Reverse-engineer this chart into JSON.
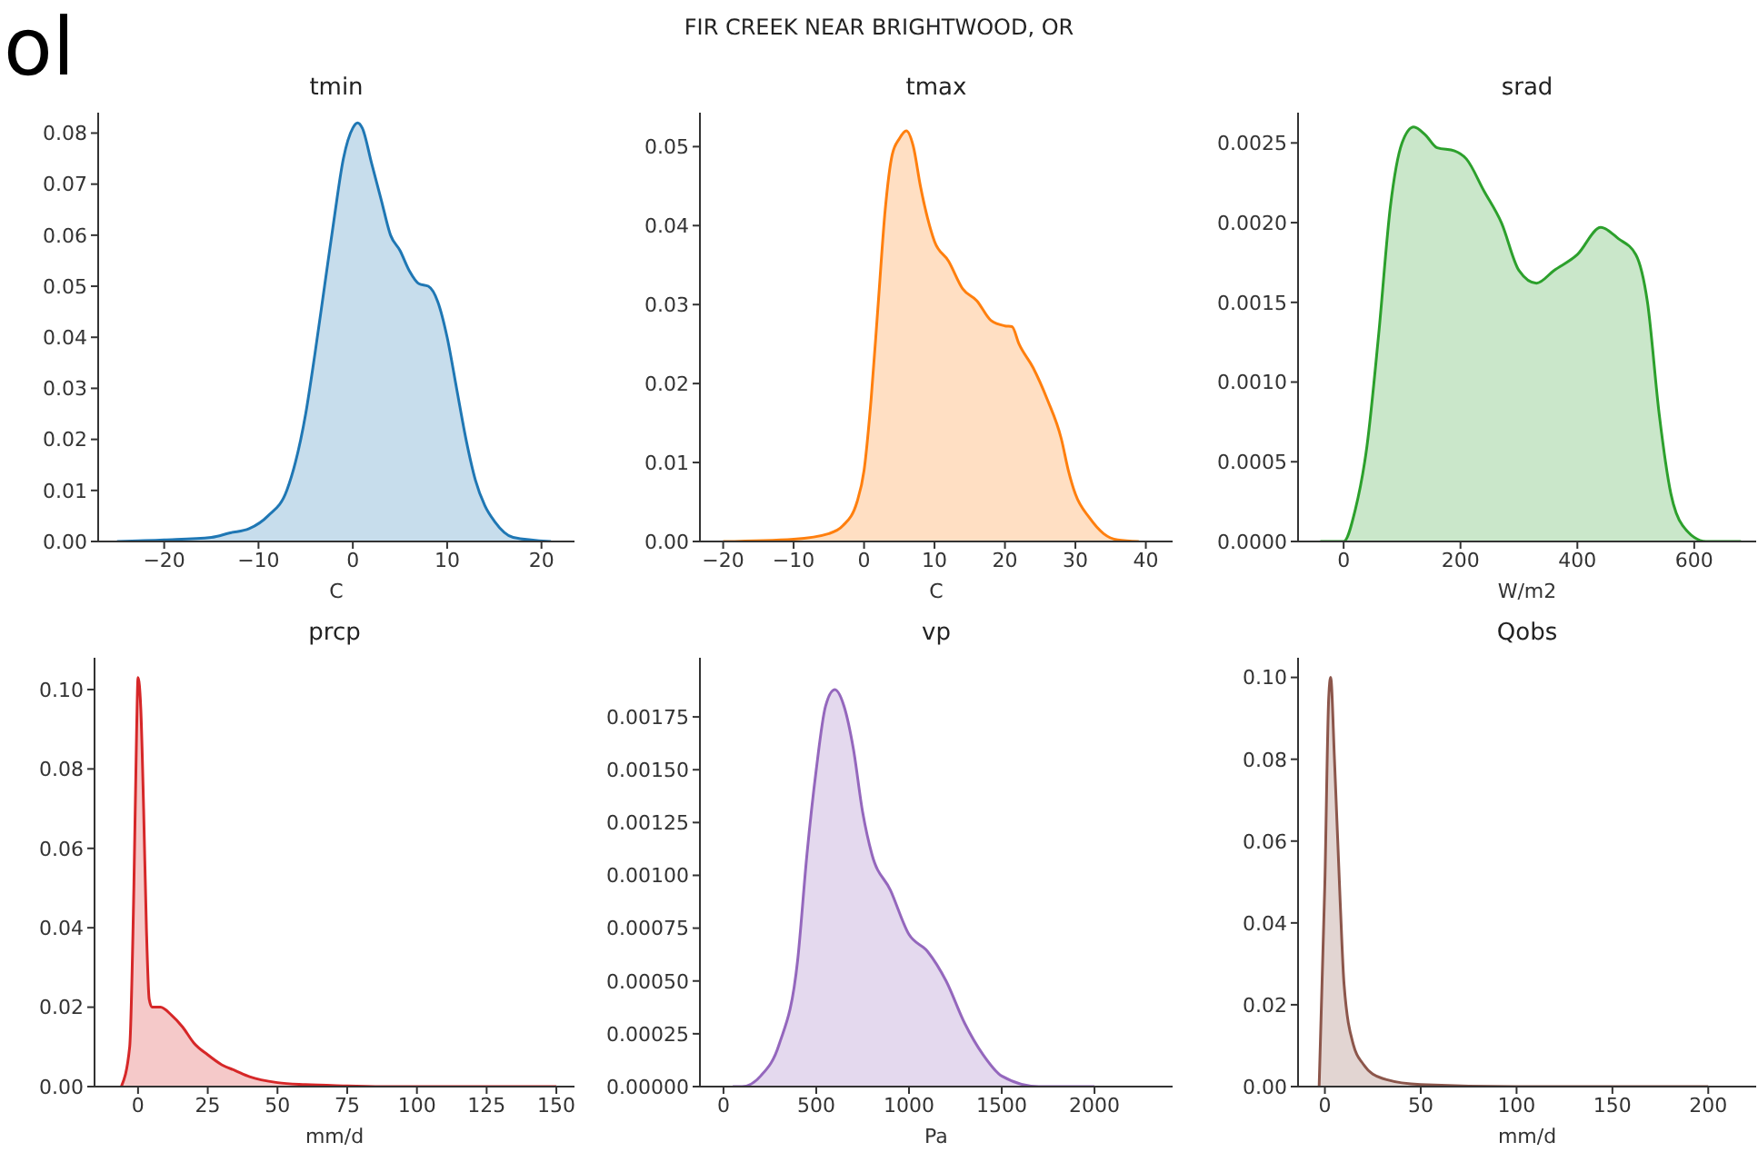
{
  "chart_data": [
    {
      "type": "area",
      "title": "tmin",
      "xlabel": "C",
      "color": "#1f77b4",
      "annotations": [
        "ol",
        "FIR CREEK NEAR BRIGHTWOOD, OR"
      ],
      "xlim": [
        -27,
        23.5
      ],
      "xticks": [
        -20,
        -10,
        0,
        10,
        20
      ],
      "ylim": [
        0,
        0.084
      ],
      "yticks": [
        {
          "value": 0,
          "label": "0.00"
        },
        0.01,
        0.02,
        0.03,
        0.04,
        0.05,
        0.06,
        0.07,
        0.08
      ],
      "grid": false,
      "legend": false,
      "x": [
        -25,
        -20,
        -15,
        -13,
        -11,
        -9,
        -7,
        -5,
        -4,
        -3,
        -2,
        -1,
        0,
        0.5,
        1,
        2,
        3,
        4,
        5,
        6,
        7,
        8,
        9,
        10,
        11,
        12,
        13,
        14,
        15,
        17,
        21
      ],
      "values": [
        0,
        0.0003,
        0.0008,
        0.0017,
        0.0025,
        0.005,
        0.01,
        0.025,
        0.037,
        0.05,
        0.063,
        0.075,
        0.081,
        0.082,
        0.081,
        0.074,
        0.067,
        0.06,
        0.057,
        0.053,
        0.0505,
        0.05,
        0.047,
        0.04,
        0.03,
        0.02,
        0.012,
        0.007,
        0.004,
        0.0008,
        0
      ]
    },
    {
      "type": "area",
      "title": "tmax",
      "xlabel": "C",
      "color": "#ff7f0e",
      "xlim": [
        -23.3,
        43.8
      ],
      "xticks": [
        -20,
        -10,
        0,
        10,
        20,
        30,
        40
      ],
      "ylim": [
        0,
        0.0543
      ],
      "yticks": [
        {
          "value": 0,
          "label": "0.00"
        },
        0.01,
        0.02,
        0.03,
        0.04,
        0.05
      ],
      "grid": false,
      "legend": false,
      "x": [
        -20,
        -10,
        -5,
        -3,
        -1,
        0,
        1,
        2,
        3,
        4,
        5,
        6,
        7,
        8,
        9,
        10,
        12,
        14,
        16,
        18,
        20,
        21,
        22,
        24,
        26,
        28,
        29,
        30,
        32,
        34,
        36,
        39
      ],
      "values": [
        0,
        0.0003,
        0.001,
        0.002,
        0.005,
        0.009,
        0.018,
        0.03,
        0.042,
        0.049,
        0.051,
        0.052,
        0.05,
        0.045,
        0.041,
        0.038,
        0.0355,
        0.032,
        0.0305,
        0.028,
        0.0273,
        0.0272,
        0.025,
        0.022,
        0.018,
        0.013,
        0.009,
        0.006,
        0.003,
        0.001,
        0.0002,
        0
      ]
    },
    {
      "type": "area",
      "title": "srad",
      "xlabel": "W/m2",
      "color": "#2ca02c",
      "xlim": [
        -78,
        706
      ],
      "xticks": [
        0,
        200,
        400,
        600
      ],
      "ylim": [
        0,
        0.00269
      ],
      "yticks": [
        {
          "value": 0,
          "label": "0.0000"
        },
        {
          "value": 0.0005,
          "label": "0.0005"
        },
        {
          "value": 0.001,
          "label": "0.0010"
        },
        {
          "value": 0.0015,
          "label": "0.0015"
        },
        {
          "value": 0.002,
          "label": "0.0020"
        },
        {
          "value": 0.0025,
          "label": "0.0025"
        }
      ],
      "grid": false,
      "legend": false,
      "x": [
        -40,
        0,
        20,
        40,
        60,
        80,
        100,
        120,
        140,
        160,
        190,
        210,
        240,
        270,
        300,
        330,
        360,
        400,
        440,
        470,
        500,
        520,
        540,
        560,
        580,
        620,
        680
      ],
      "values": [
        0,
        0,
        0.0002,
        0.0006,
        0.0013,
        0.0021,
        0.0025,
        0.0026,
        0.00255,
        0.00247,
        0.00245,
        0.0024,
        0.0022,
        0.002,
        0.0017,
        0.00162,
        0.0017,
        0.0018,
        0.00197,
        0.0019,
        0.0018,
        0.0015,
        0.0008,
        0.0003,
        0.0001,
        0,
        0
      ]
    },
    {
      "type": "area",
      "title": "prcp",
      "xlabel": "mm/d",
      "color": "#d62728",
      "xlim": [
        -15.6,
        156.5
      ],
      "xticks": [
        0,
        25,
        50,
        75,
        100,
        125,
        150
      ],
      "ylim": [
        0,
        0.108
      ],
      "yticks": [
        {
          "value": 0,
          "label": "0.00"
        },
        {
          "value": 0.02,
          "label": "0.02"
        },
        {
          "value": 0.04,
          "label": "0.04"
        },
        {
          "value": 0.06,
          "label": "0.06"
        },
        {
          "value": 0.08,
          "label": "0.08"
        },
        {
          "value": 0.1,
          "label": "0.10"
        }
      ],
      "grid": false,
      "legend": false,
      "x": [
        -6,
        -3,
        -1.5,
        -0.5,
        0,
        1,
        2,
        3,
        4,
        5,
        8,
        12,
        16,
        20,
        25,
        30,
        35,
        40,
        50,
        60,
        75,
        90,
        150
      ],
      "values": [
        0,
        0.01,
        0.05,
        0.09,
        0.103,
        0.095,
        0.07,
        0.04,
        0.022,
        0.02,
        0.02,
        0.018,
        0.015,
        0.011,
        0.008,
        0.0055,
        0.004,
        0.0025,
        0.001,
        0.0005,
        0.0002,
        0,
        0
      ]
    },
    {
      "type": "area",
      "title": "vp",
      "xlabel": "Pa",
      "color": "#9467bd",
      "xlim": [
        -127,
        2421
      ],
      "xticks": [
        0,
        500,
        1000,
        1500,
        2000
      ],
      "ylim": [
        0,
        0.00203
      ],
      "yticks": [
        {
          "value": 0,
          "label": "0.00000"
        },
        {
          "value": 0.00025,
          "label": "0.00025"
        },
        {
          "value": 0.0005,
          "label": "0.00050"
        },
        {
          "value": 0.00075,
          "label": "0.00075"
        },
        {
          "value": 0.001,
          "label": "0.00100"
        },
        {
          "value": 0.00125,
          "label": "0.00125"
        },
        {
          "value": 0.0015,
          "label": "0.00150"
        },
        {
          "value": 0.00175,
          "label": "0.00175"
        }
      ],
      "grid": false,
      "legend": false,
      "x": [
        50,
        100,
        200,
        300,
        400,
        450,
        500,
        550,
        600,
        650,
        700,
        750,
        800,
        900,
        1000,
        1100,
        1200,
        1300,
        1400,
        1500,
        1700,
        1900,
        2000
      ],
      "values": [
        0,
        0,
        5e-05,
        0.0002,
        0.0006,
        0.0011,
        0.0015,
        0.0018,
        0.00188,
        0.0018,
        0.0016,
        0.0013,
        0.0011,
        0.00093,
        0.00072,
        0.00064,
        0.0005,
        0.0003,
        0.00015,
        5e-05,
        0,
        0,
        0
      ]
    },
    {
      "type": "area",
      "title": "Qobs",
      "xlabel": "mm/d",
      "color": "#8c564b",
      "xlim": [
        -14,
        225
      ],
      "xticks": [
        0,
        50,
        100,
        150,
        200
      ],
      "ylim": [
        0,
        0.1048
      ],
      "yticks": [
        {
          "value": 0,
          "label": "0.00"
        },
        {
          "value": 0.02,
          "label": "0.02"
        },
        {
          "value": 0.04,
          "label": "0.04"
        },
        {
          "value": 0.06,
          "label": "0.06"
        },
        {
          "value": 0.08,
          "label": "0.08"
        },
        {
          "value": 0.1,
          "label": "0.10"
        }
      ],
      "grid": false,
      "legend": false,
      "x": [
        -3,
        0,
        2,
        3,
        5,
        8,
        10,
        15,
        20,
        30,
        50,
        100,
        200
      ],
      "values": [
        0,
        0.05,
        0.095,
        0.1,
        0.08,
        0.045,
        0.025,
        0.01,
        0.0055,
        0.002,
        0.0005,
        0,
        0
      ]
    }
  ]
}
